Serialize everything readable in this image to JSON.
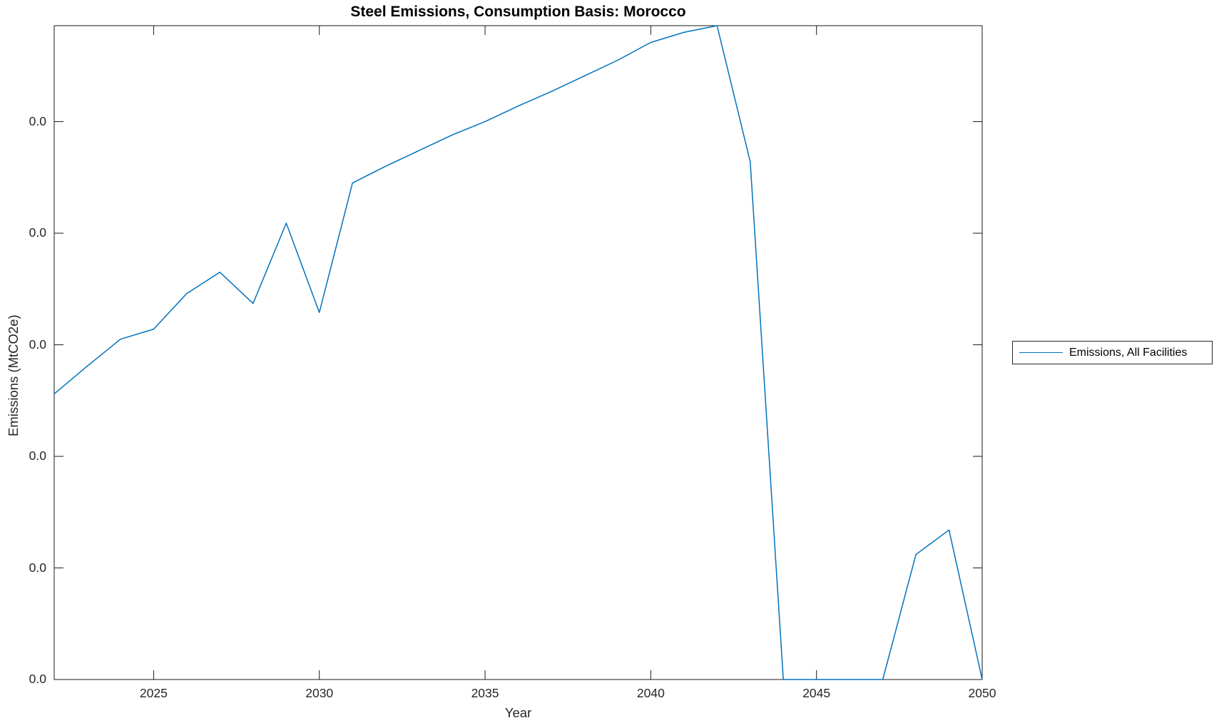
{
  "title": "Steel Emissions, Consumption Basis: Morocco",
  "axes": {
    "xlabel": "Year",
    "ylabel": "Emissions (MtCO2e)"
  },
  "legend": {
    "label": "Emissions, All Facilities",
    "position": "outside-right"
  },
  "colors": {
    "series_blue": "#0072BD",
    "axis": "#1a1a1a",
    "tick_text": "#262626",
    "background": "#ffffff"
  },
  "chart_data": {
    "type": "line",
    "title": "Steel Emissions, Consumption Basis: Morocco",
    "xlabel": "Year",
    "ylabel": "Emissions (MtCO2e)",
    "grid": false,
    "box": true,
    "tick_direction": "in",
    "legend_position": "outside-right",
    "y_value_units": "axis gridline units; every visible y tick label reads 0.0",
    "xlim": [
      2022,
      2050
    ],
    "ylim": [
      0,
      5.86
    ],
    "x_ticks": [
      2025,
      2030,
      2035,
      2040,
      2045,
      2050
    ],
    "x_tick_labels": [
      "2025",
      "2030",
      "2035",
      "2040",
      "2045",
      "2050"
    ],
    "y_ticks": [
      0,
      1,
      2,
      3,
      4,
      5
    ],
    "y_tick_labels": [
      "0.0",
      "0.0",
      "0.0",
      "0.0",
      "0.0",
      "0.0"
    ],
    "series": [
      {
        "name": "Emissions, All Facilities",
        "color": "#0072BD",
        "x": [
          2022,
          2023,
          2024,
          2025,
          2026,
          2027,
          2028,
          2029,
          2030,
          2031,
          2032,
          2033,
          2034,
          2035,
          2036,
          2037,
          2038,
          2039,
          2040,
          2041,
          2042,
          2043,
          2044,
          2045,
          2046,
          2047,
          2048,
          2049,
          2050
        ],
        "values": [
          2.56,
          2.81,
          3.05,
          3.14,
          3.46,
          3.65,
          3.37,
          4.09,
          3.29,
          4.45,
          4.6,
          4.74,
          4.88,
          5.0,
          5.14,
          5.27,
          5.41,
          5.55,
          5.71,
          5.8,
          5.86,
          4.64,
          0.0,
          0.0,
          0.0,
          0.0,
          1.12,
          1.34,
          0.0
        ]
      }
    ]
  }
}
